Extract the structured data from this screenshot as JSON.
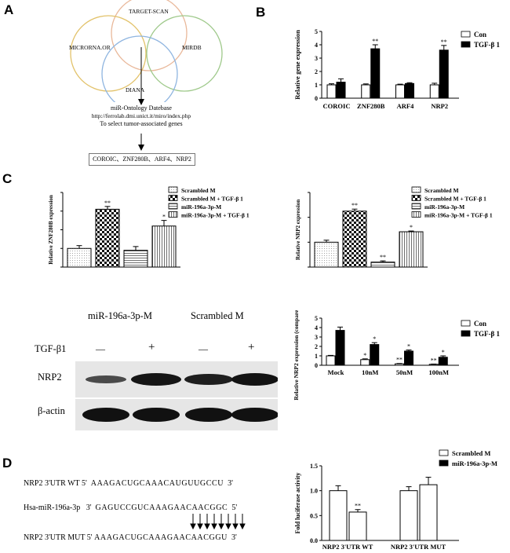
{
  "panels": {
    "a": "A",
    "b": "B",
    "c": "C",
    "d": "D"
  },
  "panel_a": {
    "venn": [
      "TARGET-SCAN",
      "MICRORNA.OR",
      "MIRDB",
      "DIANA"
    ],
    "db_title": "miR-Ontology Datebase",
    "db_url": "http://ferrolab.dmi.unict.it/miro/index.php",
    "db_note": "To select tumor-associated genes",
    "genes": "COROIC、ZNF280B、ARF4、NRP2"
  },
  "panel_c_blot": {
    "col_labels": [
      "miR-196a-3p-M",
      "Scrambled M"
    ],
    "treatment_label": "TGF-β1",
    "treatment_signs": [
      "—",
      "+",
      "—",
      "+"
    ],
    "row_labels": [
      "NRP2",
      "β-actin"
    ]
  },
  "panel_d_seq": {
    "rows": [
      {
        "label": "NRP2 3'UTR WT",
        "p1": "5'",
        "seq": "AAAGACUGCAAACAUGUUGCCU",
        "p2": "3'"
      },
      {
        "label": "Hsa-miR-196a-3p",
        "p1": "3'",
        "seq": "GAGUCCGUCAAAGAACAACGGC",
        "p2": "5'"
      },
      {
        "label": "NRP2 3'UTR MUT",
        "p1": "5'",
        "seq": "AAAGACUGCAAAGAACAACGGU",
        "p2": "3'"
      }
    ]
  },
  "chart_data": [
    {
      "id": "B",
      "type": "bar",
      "ylabel": "Relative gene expression",
      "ylim": [
        0,
        5
      ],
      "yticks": [
        "0",
        "1",
        "2",
        "3",
        "4",
        "5"
      ],
      "categories": [
        "COROIC",
        "ZNF280B",
        "ARF4",
        "NRP2"
      ],
      "series": [
        {
          "name": "Con",
          "values": [
            1.0,
            1.0,
            1.0,
            1.0
          ],
          "errors": [
            0.08,
            0.07,
            0.05,
            0.12
          ]
        },
        {
          "name": "TGF-β 1",
          "values": [
            1.2,
            3.7,
            1.1,
            3.6
          ],
          "errors": [
            0.25,
            0.3,
            0.06,
            0.35
          ]
        }
      ],
      "annotations": [
        "",
        "**",
        "",
        "**"
      ]
    },
    {
      "id": "C1",
      "type": "bar",
      "ylabel": "Relative ZNF280B expression",
      "ylim": [
        0,
        4
      ],
      "categories": [
        "Scrambled M",
        "Scrambled M + TGF-β 1",
        "miR-196a-3p-M",
        "miR-196a-3p-M + TGF-β 1"
      ],
      "values": [
        1.0,
        3.1,
        0.9,
        2.2
      ],
      "errors": [
        0.15,
        0.15,
        0.2,
        0.3
      ],
      "annotations": [
        "",
        "**",
        "",
        "*"
      ]
    },
    {
      "id": "C2",
      "type": "bar",
      "ylabel": "Relative NRP2 expression",
      "ylim": [
        0,
        3
      ],
      "categories": [
        "Scrambled M",
        "Scrambled M + TGF-β 1",
        "miR-196a-3p-M",
        "miR-196a-3p-M + TGF-β 1"
      ],
      "values": [
        1.0,
        2.25,
        0.2,
        1.42
      ],
      "errors": [
        0.08,
        0.08,
        0.05,
        0.03
      ],
      "annotations": [
        "",
        "**",
        "**",
        "*"
      ]
    },
    {
      "id": "C3",
      "type": "bar",
      "ylabel": "Relative NRP2 expression (compared to mock)",
      "ylim": [
        0,
        5
      ],
      "yticks": [
        "0",
        "1",
        "2",
        "3",
        "4",
        "5"
      ],
      "categories": [
        "Mock",
        "10nM",
        "50nM",
        "100nM"
      ],
      "series": [
        {
          "name": "Con",
          "values": [
            1.0,
            0.6,
            0.15,
            0.1
          ],
          "errors": [
            0.05,
            0.08,
            0.04,
            0.03
          ]
        },
        {
          "name": "TGF-β 1",
          "values": [
            3.7,
            2.2,
            1.5,
            0.85
          ],
          "errors": [
            0.35,
            0.2,
            0.12,
            0.15
          ]
        }
      ],
      "annotations_con": [
        "",
        "*",
        "**",
        "**"
      ],
      "annotations_tgf": [
        "",
        "*",
        "*",
        "*"
      ]
    },
    {
      "id": "D",
      "type": "bar",
      "ylabel": "Fold luciferase activity",
      "ylim": [
        0,
        1.5
      ],
      "yticks": [
        "0.0",
        "0.5",
        "1.0",
        "1.5"
      ],
      "categories": [
        "NRP2 3'UTR WT",
        "NRP2 3'UTR MUT"
      ],
      "series": [
        {
          "name": "Scrambled M",
          "values": [
            1.0,
            1.0
          ],
          "errors": [
            0.1,
            0.08
          ]
        },
        {
          "name": "miR-196a-3p-M",
          "values": [
            0.57,
            1.12
          ],
          "errors": [
            0.05,
            0.15
          ]
        }
      ],
      "annotations": [
        "**",
        ""
      ]
    }
  ]
}
